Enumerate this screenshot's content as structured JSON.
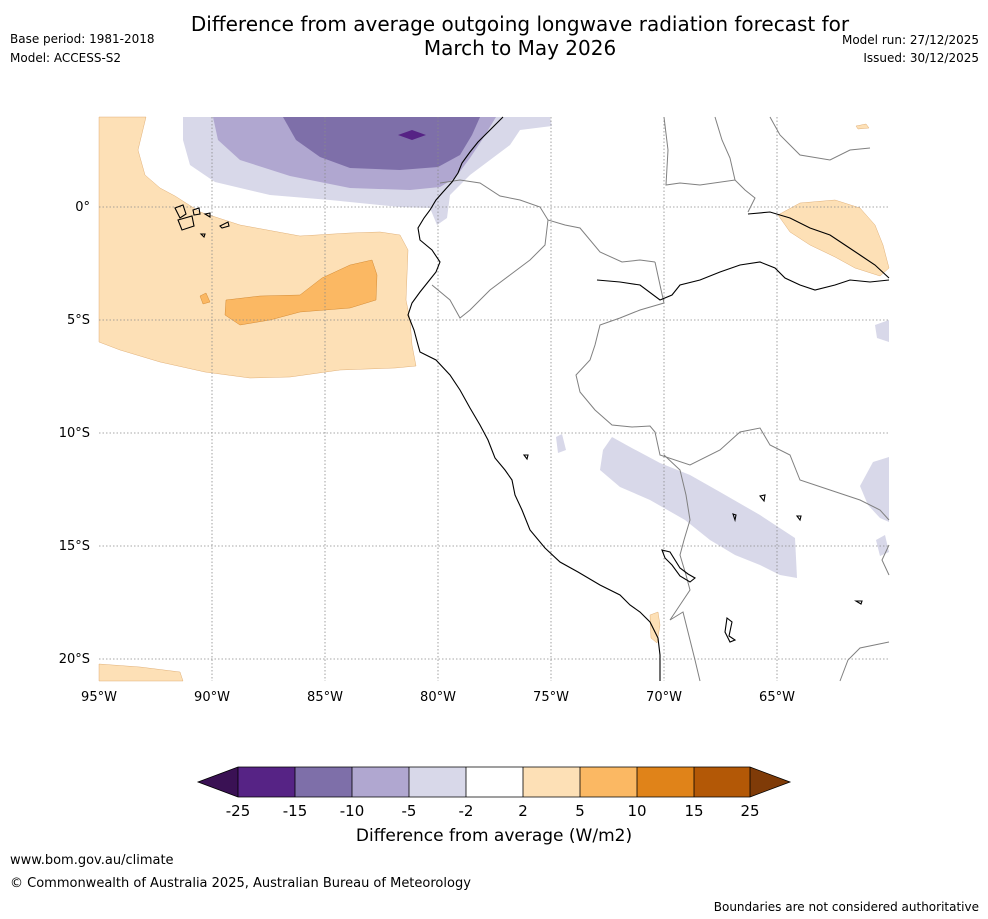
{
  "title_line1": "Difference from average outgoing longwave radiation forecast for",
  "title_line2": "March to May 2026",
  "base_period": "Base period: 1981-2018",
  "model": "Model: ACCESS-S2",
  "model_run": "Model run: 27/12/2025",
  "issued": "Issued: 30/12/2025",
  "map": {
    "lat_labels": [
      "0°",
      "5°S",
      "10°S",
      "15°S",
      "20°S"
    ],
    "lon_labels": [
      "95°W",
      "90°W",
      "85°W",
      "80°W",
      "75°W",
      "70°W",
      "65°W"
    ],
    "region": "Western South America (Ecuador, Peru, northern Chile) and eastern Pacific"
  },
  "colorbar": {
    "title": "Difference from average (W/m2)",
    "tick_labels": [
      "-25",
      "-15",
      "-10",
      "-5",
      "-2",
      "2",
      "5",
      "10",
      "15",
      "25"
    ],
    "colors": [
      "#3a1154",
      "#562385",
      "#7e6fa9",
      "#b0a7d0",
      "#d8d8e9",
      "#ffffff",
      "#fde0b6",
      "#fbb863",
      "#e08319",
      "#b35806",
      "#7f3b08"
    ]
  },
  "footer": {
    "url": "www.bom.gov.au/climate",
    "copyright": "© Commonwealth of Australia 2025, Australian Bureau of Meteorology",
    "disclaimer": "Boundaries are not considered authoritative"
  }
}
